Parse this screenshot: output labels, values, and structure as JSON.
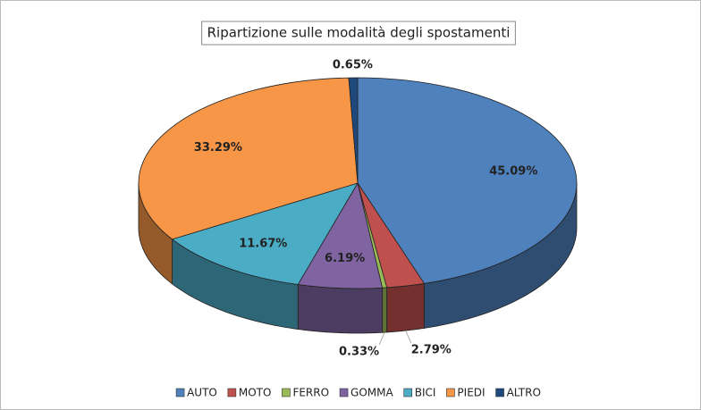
{
  "chart_data": {
    "type": "pie3d",
    "title": "Ripartizione sulle modalità degli spostamenti",
    "categories": [
      "AUTO",
      "MOTO",
      "FERRO",
      "GOMMA",
      "BICI",
      "PIEDI",
      "ALTRO"
    ],
    "values": [
      45.09,
      2.79,
      0.33,
      6.19,
      11.67,
      33.29,
      0.65
    ],
    "value_labels": [
      "45.09%",
      "2.79%",
      "0.33%",
      "6.19%",
      "11.67%",
      "33.29%",
      "0.65%"
    ],
    "colors": [
      "#4f81bd",
      "#c0504d",
      "#9bbb59",
      "#8064a2",
      "#4bacc6",
      "#f79646",
      "#1f497d"
    ],
    "legend": "bottom"
  }
}
